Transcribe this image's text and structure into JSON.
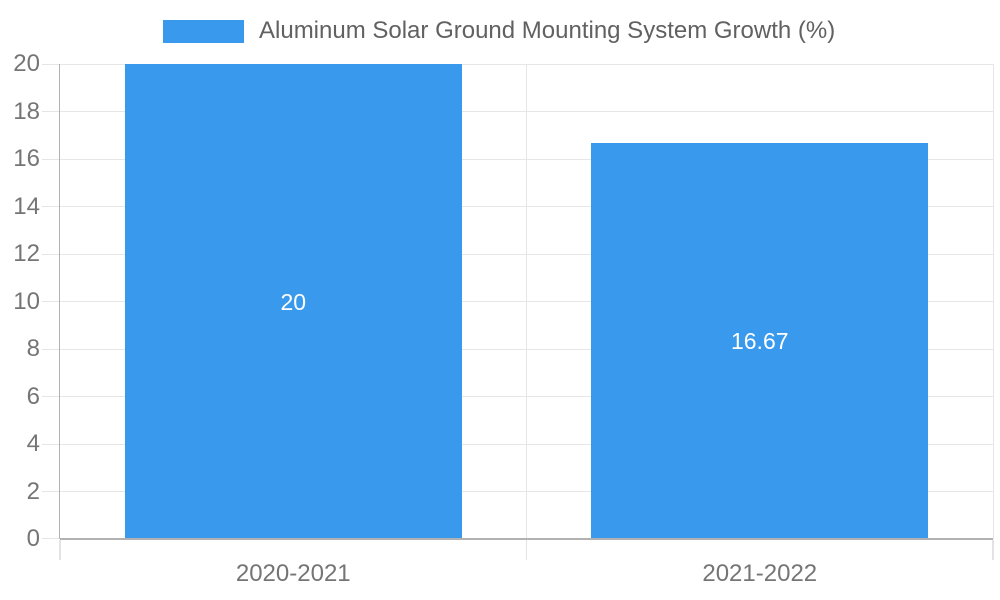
{
  "legend": {
    "label": "Aluminum Solar Ground Mounting System Growth (%)"
  },
  "colors": {
    "bar": "#3999EC",
    "grid": "#e6e6e6",
    "axis": "#b2b2b2",
    "tick_label": "#757575",
    "legend_text": "#616161",
    "value_label": "#ffffff",
    "background": "#ffffff"
  },
  "chart_data": {
    "type": "bar",
    "title": "Aluminum Solar Ground Mounting System Growth (%)",
    "categories": [
      "2020-2021",
      "2021-2022"
    ],
    "series": [
      {
        "name": "Aluminum Solar Ground Mounting System Growth (%)",
        "values": [
          20,
          16.67
        ],
        "color": "#3999EC"
      }
    ],
    "value_labels": [
      "20",
      "16.67"
    ],
    "xlabel": "",
    "ylabel": "",
    "ylim": [
      0,
      20
    ],
    "ytick_step": 2,
    "yticks": [
      0,
      2,
      4,
      6,
      8,
      10,
      12,
      14,
      16,
      18,
      20
    ],
    "grid": true,
    "legend_position": "top"
  }
}
